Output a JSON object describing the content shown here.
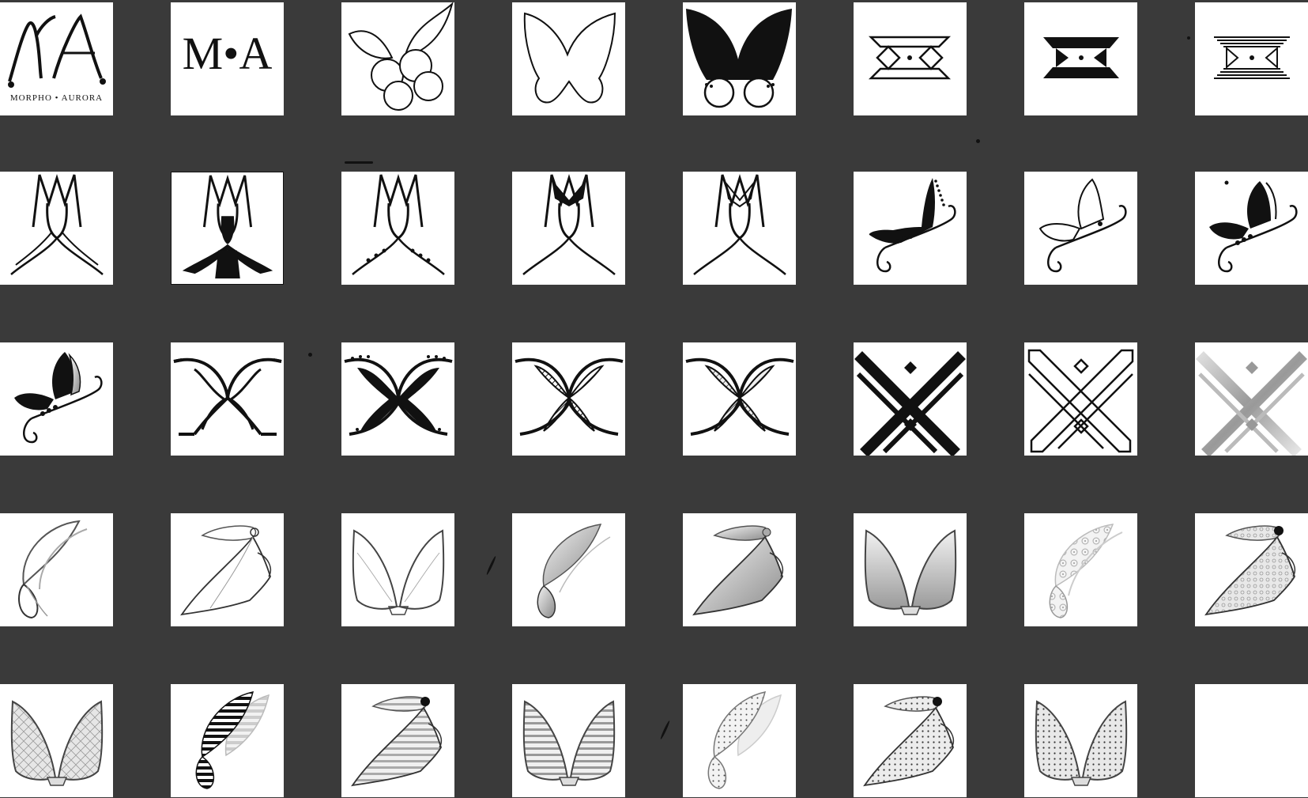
{
  "board": {
    "background": "#3a3a3a",
    "tile_background": "#ffffff",
    "ink": "#111111"
  },
  "tiles": {
    "r1c1": {
      "icon": "ma-script-logo-icon",
      "caption": "MORPHO • AURORA"
    },
    "r1c2": {
      "icon": "ma-monogram-icon",
      "text": "M•A"
    },
    "r1c3": {
      "icon": "butterfly-swirl-circles-icon"
    },
    "r1c4": {
      "icon": "butterfly-outline-icon"
    },
    "r1c5": {
      "icon": "butterfly-solid-dotted-icon"
    },
    "r1c6": {
      "icon": "geometric-x-outline-icon"
    },
    "r1c7": {
      "icon": "geometric-x-solid-icon"
    },
    "r1c8": {
      "icon": "geometric-x-striped-icon"
    },
    "r2c1": {
      "icon": "ma-line-figure-icon"
    },
    "r2c2": {
      "icon": "ma-solid-figure-icon"
    },
    "r2c3": {
      "icon": "ma-dotted-figure-icon"
    },
    "r2c4": {
      "icon": "ma-filled-bow-figure-icon"
    },
    "r2c5": {
      "icon": "ma-outline-bow-figure-icon"
    },
    "r2c6": {
      "icon": "butterfly-side-solid-icon"
    },
    "r2c7": {
      "icon": "butterfly-side-outline-icon"
    },
    "r2c8": {
      "icon": "butterfly-side-mixed-icon"
    },
    "r3c1": {
      "icon": "butterfly-side-gradient-icon"
    },
    "r3c2": {
      "icon": "x-wings-outline-icon"
    },
    "r3c3": {
      "icon": "x-wings-solid-dotted-icon"
    },
    "r3c4": {
      "icon": "x-wings-hatched-icon"
    },
    "r3c5": {
      "icon": "x-wings-gray-hatched-icon"
    },
    "r3c6": {
      "icon": "diagonal-x-solid-icon"
    },
    "r3c7": {
      "icon": "diagonal-x-outline-icon"
    },
    "r3c8": {
      "icon": "diagonal-x-gray-icon"
    },
    "r4c1": {
      "icon": "wing-sketch-outline-icon"
    },
    "r4c2": {
      "icon": "veil-wing-outline-icon"
    },
    "r4c3": {
      "icon": "fairy-wings-outline-icon"
    },
    "r4c4": {
      "icon": "wing-gradient-icon"
    },
    "r4c5": {
      "icon": "veil-wing-gradient-icon"
    },
    "r4c6": {
      "icon": "fairy-wings-gradient-icon"
    },
    "r4c7": {
      "icon": "wing-floral-lace-icon"
    },
    "r4c8": {
      "icon": "veil-wing-lace-icon"
    },
    "r5c1": {
      "icon": "fairy-wings-lace-icon"
    },
    "r5c2": {
      "icon": "wing-striped-icon"
    },
    "r5c3": {
      "icon": "veil-wing-striped-icon"
    },
    "r5c4": {
      "icon": "fairy-wings-striped-icon"
    },
    "r5c5": {
      "icon": "wing-dotted-icon"
    },
    "r5c6": {
      "icon": "veil-wing-dotted-icon"
    },
    "r5c7": {
      "icon": "fairy-wings-dotted-icon"
    },
    "r5c8": {
      "icon": "blank-tile"
    }
  }
}
